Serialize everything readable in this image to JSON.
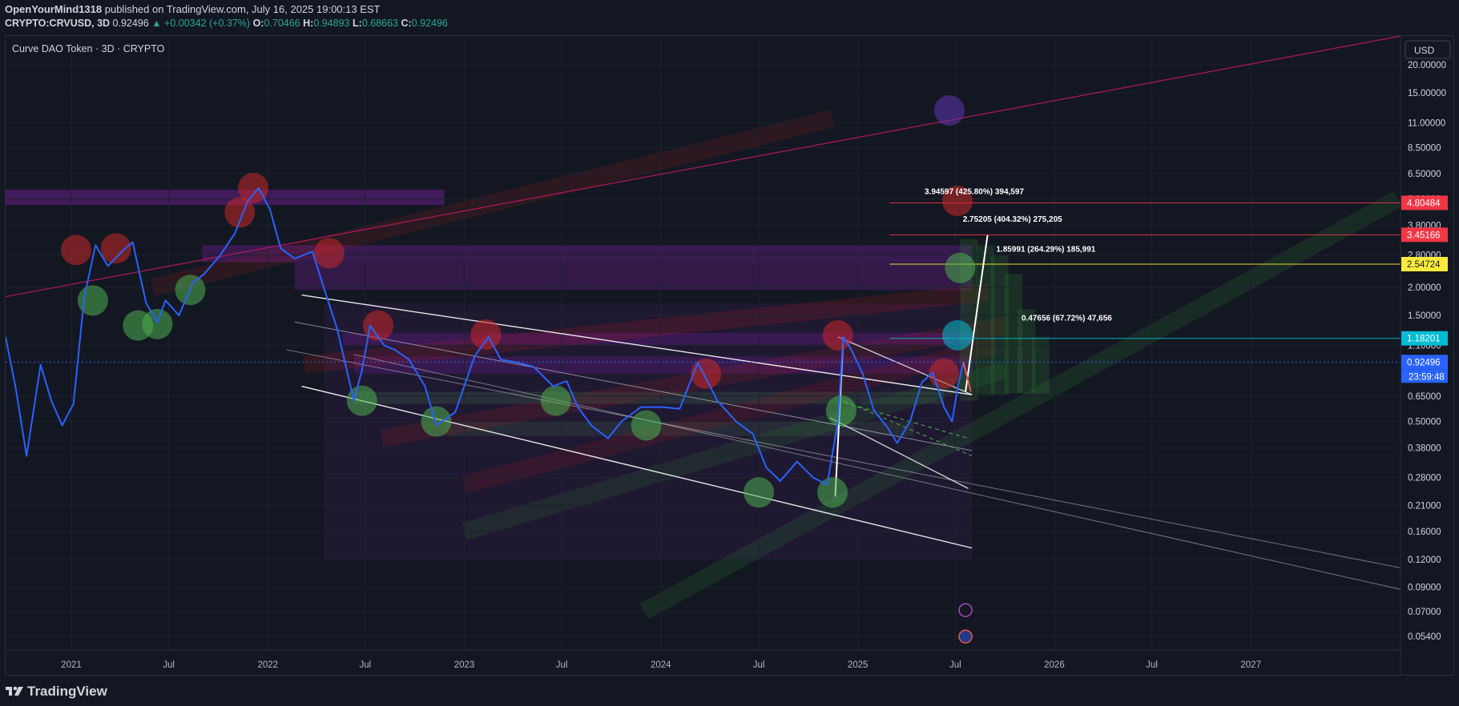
{
  "header": {
    "line1": {
      "author": "OpenYourMind1318",
      "published": " published on TradingView.com, July 16, 2025 19:00:13 EST"
    },
    "line2": {
      "symbol": "CRYPTO:CRVUSD, 3D",
      "last": "0.92496",
      "change": "▲ +0.00342 (+0.37%)",
      "o_label": "O:",
      "o": "0.70466",
      "h_label": "H:",
      "h": "0.94893",
      "l_label": "L:",
      "l": "0.68663",
      "c_label": "C:",
      "c": "0.92496"
    }
  },
  "chart_title": "Curve DAO Token · 3D · CRYPTO",
  "currency": "USD",
  "footer": {
    "logo_text": "TradingView"
  },
  "colors": {
    "background": "#131722",
    "price_line": "#2962ff",
    "red_circle": "#c62828",
    "green_circle": "#4caf50",
    "purple_zone": "#7b1fa2",
    "line_white": "#ffffff",
    "label_red": "#f23645",
    "label_yellow": "#ffeb3b",
    "label_cyan": "#00bcd4",
    "label_blue": "#2962ff"
  },
  "chart_data": {
    "type": "line",
    "scale": "log",
    "ylim": [
      0.047,
      27
    ],
    "xlim": [
      "2020-09-01",
      "2027-10-06"
    ],
    "y_ticks": [
      "20.00000",
      "15.00000",
      "11.00000",
      "8.50000",
      "6.50000",
      "5.00000",
      "3.80000",
      "2.80000",
      "2.00000",
      "1.50000",
      "1.10000",
      "0.65000",
      "0.50000",
      "0.38000",
      "0.28000",
      "0.21000",
      "0.16000",
      "0.12000",
      "0.09000",
      "0.07000",
      "0.05400"
    ],
    "x_ticks": [
      {
        "label": "2021",
        "date": "2021-01-01"
      },
      {
        "label": "Jul",
        "date": "2021-07-01"
      },
      {
        "label": "2022",
        "date": "2022-01-01"
      },
      {
        "label": "Jul",
        "date": "2022-07-01"
      },
      {
        "label": "2023",
        "date": "2023-01-01"
      },
      {
        "label": "Jul",
        "date": "2023-07-01"
      },
      {
        "label": "2024",
        "date": "2024-01-01"
      },
      {
        "label": "Jul",
        "date": "2024-07-01"
      },
      {
        "label": "2025",
        "date": "2025-01-01"
      },
      {
        "label": "Jul",
        "date": "2025-07-01"
      },
      {
        "label": "2026",
        "date": "2026-01-01"
      },
      {
        "label": "Jul",
        "date": "2026-07-01"
      },
      {
        "label": "2027",
        "date": "2027-01-01"
      }
    ],
    "series": [
      {
        "x": [
          "2020-09-01",
          "2020-09-20",
          "2020-10-10",
          "2020-11-05",
          "2020-11-25",
          "2020-12-15",
          "2021-01-05",
          "2021-01-25",
          "2021-02-15",
          "2021-03-10",
          "2021-04-05",
          "2021-04-25",
          "2021-05-20",
          "2021-06-10",
          "2021-06-25",
          "2021-07-20",
          "2021-08-15",
          "2021-09-05",
          "2021-10-05",
          "2021-11-01",
          "2021-11-25",
          "2021-12-15",
          "2022-01-05",
          "2022-01-25",
          "2022-02-20",
          "2022-03-25",
          "2022-04-15",
          "2022-05-10",
          "2022-06-10",
          "2022-06-25",
          "2022-07-10",
          "2022-08-05",
          "2022-08-25",
          "2022-09-20",
          "2022-10-20",
          "2022-11-10",
          "2022-12-15",
          "2023-01-20",
          "2023-02-15",
          "2023-03-10",
          "2023-04-10",
          "2023-05-10",
          "2023-06-15",
          "2023-07-10",
          "2023-07-31",
          "2023-08-25",
          "2023-09-25",
          "2023-10-20",
          "2023-11-25",
          "2024-01-05",
          "2024-02-05",
          "2024-03-10",
          "2024-04-15",
          "2024-05-20",
          "2024-06-20",
          "2024-07-15",
          "2024-08-10",
          "2024-09-10",
          "2024-10-10",
          "2024-11-05",
          "2024-11-25",
          "2024-12-05",
          "2024-12-20",
          "2025-01-10",
          "2025-01-31",
          "2025-02-25",
          "2025-03-15",
          "2025-04-08",
          "2025-04-30",
          "2025-05-20",
          "2025-06-10",
          "2025-06-25",
          "2025-07-05",
          "2025-07-16"
        ],
        "y": [
          1.2,
          0.7,
          0.35,
          0.9,
          0.62,
          0.48,
          0.6,
          1.8,
          3.1,
          2.5,
          2.9,
          3.2,
          1.7,
          1.4,
          1.75,
          1.5,
          2.1,
          2.3,
          2.8,
          3.5,
          4.9,
          5.6,
          4.5,
          3.0,
          2.7,
          2.9,
          2.0,
          1.3,
          0.62,
          0.85,
          1.35,
          1.1,
          1.05,
          0.95,
          0.72,
          0.48,
          0.55,
          0.98,
          1.2,
          0.95,
          0.92,
          0.88,
          0.72,
          0.76,
          0.58,
          0.48,
          0.42,
          0.5,
          0.58,
          0.58,
          0.57,
          0.92,
          0.62,
          0.5,
          0.44,
          0.31,
          0.27,
          0.33,
          0.28,
          0.26,
          0.5,
          1.2,
          1.05,
          0.82,
          0.56,
          0.47,
          0.4,
          0.5,
          0.75,
          0.83,
          0.58,
          0.5,
          0.7,
          0.925
        ]
      }
    ],
    "annotations": [
      {
        "text": "3.94597 (425.80%) 394,597"
      },
      {
        "text": "2.75205 (404.32%) 275,205"
      },
      {
        "text": "1.85991 (264.29%) 185,991"
      },
      {
        "text": "0.47656 (67.72%) 47,656"
      }
    ],
    "price_labels": [
      {
        "value": "4.80484",
        "color": "red"
      },
      {
        "value": "3.45166",
        "color": "red"
      },
      {
        "value": "2.54724",
        "color": "yellow"
      },
      {
        "value": "1.18201",
        "color": "cyan"
      },
      {
        "value": "0.92496",
        "color": "blue"
      }
    ],
    "countdown": "23:59:48"
  }
}
